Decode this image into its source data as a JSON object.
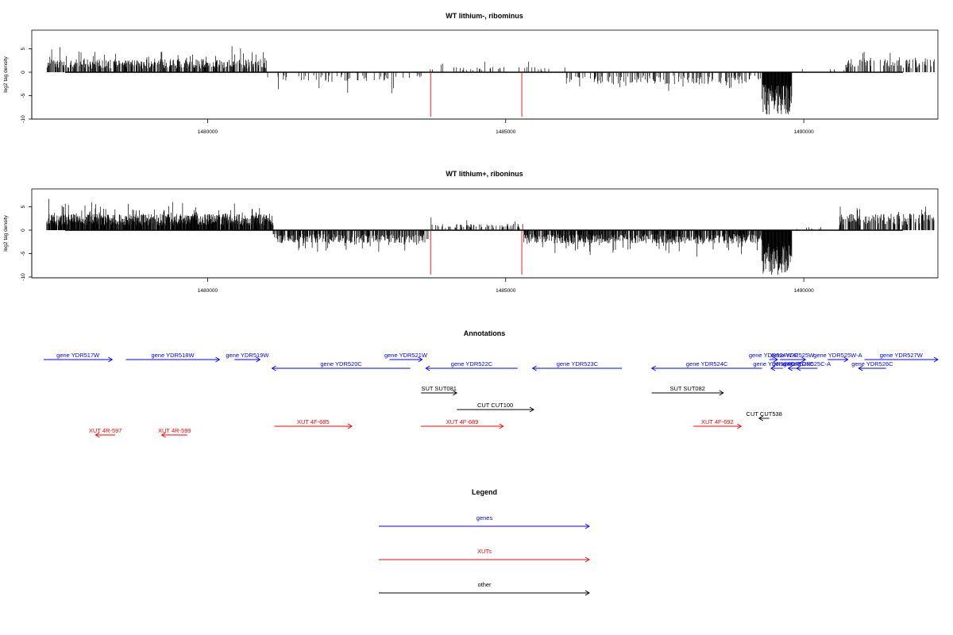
{
  "colors": {
    "genes": "#0000ff",
    "xuts": "#ff0000",
    "other": "#000000",
    "axis": "#000000",
    "marker": "#ff0000"
  },
  "chart_data": [
    {
      "type": "bar",
      "title": "WT lithium-, ribominus",
      "ylabel": "log2 tag density",
      "xlabel": "",
      "xlim": [
        1477050,
        1492250
      ],
      "ylim": [
        -10,
        8.5
      ],
      "xticks": [
        1480000,
        1485000,
        1490000
      ],
      "xtick_labels": [
        "1480000",
        "1485000",
        "1490000"
      ],
      "yticks": [
        -10,
        -5,
        0,
        5
      ],
      "ytick_labels": [
        "-10",
        "-5",
        "0",
        "5"
      ],
      "grid": false,
      "markers_x": [
        1483740,
        1485270
      ],
      "marker_y": -9.5,
      "segments": [
        {
          "x": [
            1477300,
            1481000
          ],
          "polarity": 1,
          "base": 2.0,
          "amp": 3.0,
          "peak": 6.3,
          "density": 0.55,
          "seed": 11
        },
        {
          "x": [
            1481000,
            1483700
          ],
          "polarity": -1,
          "base": 1.5,
          "amp": 3.0,
          "peak": 4.5,
          "density": 0.12,
          "seed": 12
        },
        {
          "x": [
            1483700,
            1486000
          ],
          "polarity": 1,
          "base": 0.8,
          "amp": 1.8,
          "peak": 3.5,
          "density": 0.08,
          "seed": 13
        },
        {
          "x": [
            1486000,
            1489300
          ],
          "polarity": -1,
          "base": 1.8,
          "amp": 2.6,
          "peak": 5.5,
          "density": 0.22,
          "seed": 14
        },
        {
          "x": [
            1489300,
            1489800
          ],
          "polarity": -1,
          "base": 6.5,
          "amp": 2.0,
          "peak": 9.0,
          "density": 1.0,
          "seed": 15
        },
        {
          "x": [
            1489800,
            1490700
          ],
          "polarity": 1,
          "base": 0.5,
          "amp": 1.5,
          "peak": 2.5,
          "density": 0.05,
          "seed": 16
        },
        {
          "x": [
            1490700,
            1492200
          ],
          "polarity": 1,
          "base": 2.0,
          "amp": 2.0,
          "peak": 6.8,
          "density": 0.3,
          "seed": 17
        }
      ]
    },
    {
      "type": "bar",
      "title": "WT lithium+, riboninus",
      "ylabel": "log2 tag density",
      "xlabel": "",
      "xlim": [
        1477050,
        1492250
      ],
      "ylim": [
        -10,
        8.5
      ],
      "xticks": [
        1480000,
        1485000,
        1490000
      ],
      "xtick_labels": [
        "1480000",
        "1485000",
        "1490000"
      ],
      "yticks": [
        -10,
        -5,
        0,
        5
      ],
      "ytick_labels": [
        "-10",
        "-5",
        "0",
        "5"
      ],
      "grid": false,
      "markers_x": [
        1483740,
        1485270
      ],
      "marker_y": -9.5,
      "segments": [
        {
          "x": [
            1477300,
            1481100
          ],
          "polarity": 1,
          "base": 2.5,
          "amp": 3.5,
          "peak": 7.5,
          "density": 0.9,
          "seed": 21
        },
        {
          "x": [
            1481100,
            1483700
          ],
          "polarity": -1,
          "base": 2.0,
          "amp": 2.5,
          "peak": 5.0,
          "density": 0.6,
          "seed": 22
        },
        {
          "x": [
            1483700,
            1485300
          ],
          "polarity": 1,
          "base": 1.0,
          "amp": 2.0,
          "peak": 3.5,
          "density": 0.25,
          "seed": 23
        },
        {
          "x": [
            1485300,
            1489300
          ],
          "polarity": -1,
          "base": 2.0,
          "amp": 3.0,
          "peak": 6.0,
          "density": 0.75,
          "seed": 24
        },
        {
          "x": [
            1489300,
            1489800
          ],
          "polarity": -1,
          "base": 6.5,
          "amp": 2.5,
          "peak": 9.5,
          "density": 1.0,
          "seed": 25
        },
        {
          "x": [
            1489800,
            1490600
          ],
          "polarity": 1,
          "base": 0.5,
          "amp": 1.0,
          "peak": 2.0,
          "density": 0.05,
          "seed": 26
        },
        {
          "x": [
            1490600,
            1492200
          ],
          "polarity": 1,
          "base": 2.5,
          "amp": 2.5,
          "peak": 8.0,
          "density": 0.55,
          "seed": 27
        }
      ]
    }
  ],
  "annotations": {
    "title": "Annotations",
    "items": [
      {
        "label": "gene YDR517W",
        "type": "gene",
        "strand": "+",
        "x0": 1477250,
        "x1": 1478400,
        "row": 0
      },
      {
        "label": "gene YDR518W",
        "type": "gene",
        "strand": "+",
        "x0": 1478630,
        "x1": 1480200,
        "row": 0
      },
      {
        "label": "gene YDR519W",
        "type": "gene",
        "strand": "+",
        "x0": 1480450,
        "x1": 1480880,
        "row": 0
      },
      {
        "label": "gene YDR520C",
        "type": "gene",
        "strand": "-",
        "x0": 1481080,
        "x1": 1483400,
        "row": 1
      },
      {
        "label": "gene YDR521W",
        "type": "gene",
        "strand": "+",
        "x0": 1483050,
        "x1": 1483600,
        "row": 0
      },
      {
        "label": "gene YDR522C",
        "type": "gene",
        "strand": "-",
        "x0": 1483660,
        "x1": 1485200,
        "row": 1
      },
      {
        "label": "gene YDR523C",
        "type": "gene",
        "strand": "-",
        "x0": 1485450,
        "x1": 1486950,
        "row": 1
      },
      {
        "label": "gene YDR524C",
        "type": "gene",
        "strand": "-",
        "x0": 1487450,
        "x1": 1489300,
        "row": 1
      },
      {
        "label": "gene YDR524W-C",
        "type": "gene",
        "strand": "+",
        "x0": 1489420,
        "x1": 1489560,
        "row": 0
      },
      {
        "label": "gene YDR524C-B",
        "type": "gene",
        "strand": "-",
        "x0": 1489450,
        "x1": 1489650,
        "row": 1
      },
      {
        "label": "gene YDR525W",
        "type": "gene",
        "strand": "+",
        "x0": 1489600,
        "x1": 1490030,
        "row": 0
      },
      {
        "label": "gene YDR525C",
        "type": "gene",
        "strand": "-",
        "x0": 1489740,
        "x1": 1489900,
        "row": 1
      },
      {
        "label": "gene YDR525C-A",
        "type": "gene",
        "strand": "-",
        "x0": 1489880,
        "x1": 1490230,
        "row": 1
      },
      {
        "label": "gene YDR525W-A",
        "type": "gene",
        "strand": "+",
        "x0": 1490400,
        "x1": 1490740,
        "row": 0
      },
      {
        "label": "gene YDR526C",
        "type": "gene",
        "strand": "-",
        "x0": 1490920,
        "x1": 1491380,
        "row": 1
      },
      {
        "label": "gene YDR527W",
        "type": "gene",
        "strand": "+",
        "x0": 1491020,
        "x1": 1492250,
        "row": 0
      },
      {
        "label": "SUT SUT081",
        "type": "other",
        "strand": "+",
        "x0": 1483580,
        "x1": 1484180,
        "row": 2
      },
      {
        "label": "SUT SUT082",
        "type": "other",
        "strand": "+",
        "x0": 1487450,
        "x1": 1488650,
        "row": 2
      },
      {
        "label": "CUT CUT100",
        "type": "other",
        "strand": "+",
        "x0": 1484180,
        "x1": 1485470,
        "row": 3
      },
      {
        "label": "CUT CUT538",
        "type": "other",
        "strand": "-",
        "x0": 1489250,
        "x1": 1489420,
        "row": 4
      },
      {
        "label": "XUT 4F-685",
        "type": "xut",
        "strand": "+",
        "x0": 1481120,
        "x1": 1482420,
        "row": 5
      },
      {
        "label": "XUT 4F-689",
        "type": "xut",
        "strand": "+",
        "x0": 1483580,
        "x1": 1484960,
        "row": 5
      },
      {
        "label": "XUT 4F-692",
        "type": "xut",
        "strand": "+",
        "x0": 1488150,
        "x1": 1488950,
        "row": 5
      },
      {
        "label": "XUT 4R-597",
        "type": "xut",
        "strand": "-",
        "x0": 1478120,
        "x1": 1478450,
        "row": 6
      },
      {
        "label": "XUT 4R-599",
        "type": "xut",
        "strand": "-",
        "x0": 1479230,
        "x1": 1479660,
        "row": 6
      }
    ]
  },
  "legend": {
    "title": "Legend",
    "entries": [
      {
        "label": "genes",
        "type": "gene"
      },
      {
        "label": "XUTs",
        "type": "xut"
      },
      {
        "label": "other",
        "type": "other"
      }
    ]
  }
}
